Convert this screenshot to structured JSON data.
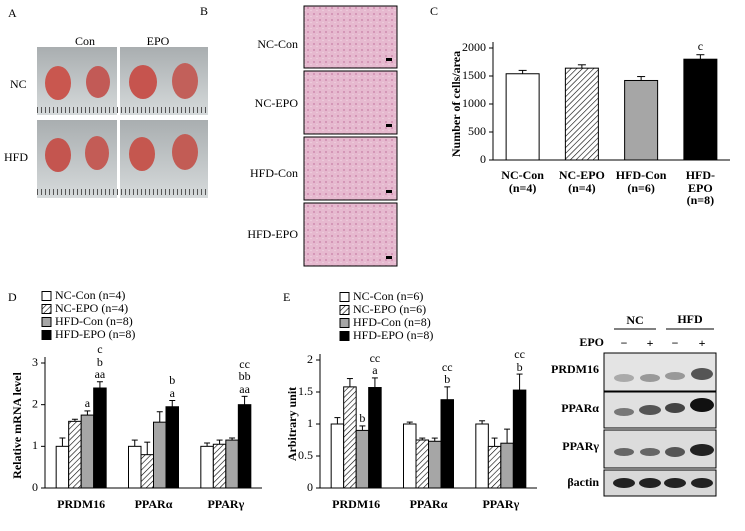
{
  "panel_labels": [
    "A",
    "B",
    "C",
    "D",
    "E"
  ],
  "photos": {
    "columns": [
      "Con",
      "EPO"
    ],
    "rows": [
      "NC",
      "HFD"
    ]
  },
  "histology": {
    "labels": [
      "NC-Con",
      "NC-EPO",
      "HFD-Con",
      "HFD-EPO"
    ]
  },
  "blot": {
    "groups": [
      "NC",
      "HFD"
    ],
    "treatment": "EPO",
    "signs": [
      "−",
      "+",
      "−",
      "+"
    ],
    "rows": [
      "PRDM16",
      "PPARα",
      "PPARγ",
      "βactin"
    ]
  },
  "chart_data": [
    {
      "type": "bar",
      "ylabel": "Number of cells/area",
      "categories": [
        "NC-Con\n(n=4)",
        "NC-EPO\n(n=4)",
        "HFD-Con\n(n=6)",
        "HFD-EPO\n(n=8)"
      ],
      "values": [
        1540,
        1640,
        1420,
        1800
      ],
      "errors": [
        60,
        60,
        70,
        80
      ],
      "colors": [
        "#ffffff",
        "#ffffff",
        "#a6a6a6",
        "#000000"
      ],
      "hatched": [
        false,
        true,
        false,
        false
      ],
      "labels": [
        null,
        null,
        null,
        "c"
      ],
      "ylim": [
        0,
        2000
      ],
      "yticks": [
        0,
        500,
        1000,
        1500,
        2000
      ]
    },
    {
      "type": "grouped_bar",
      "ylabel": "Relative mRNA level",
      "categories": [
        "PRDM16",
        "PPARα",
        "PPARγ"
      ],
      "series": [
        {
          "name": "NC-Con (n=4)",
          "color": "#ffffff",
          "hatched": false,
          "values": [
            1.0,
            1.0,
            1.0
          ],
          "errors": [
            0.2,
            0.15,
            0.08
          ],
          "labels": [
            null,
            null,
            null
          ]
        },
        {
          "name": "NC-EPO (n=4)",
          "color": "#ffffff",
          "hatched": true,
          "values": [
            1.6,
            0.8,
            1.05
          ],
          "errors": [
            0.05,
            0.3,
            0.1
          ],
          "labels": [
            null,
            null,
            null
          ]
        },
        {
          "name": "HFD-Con (n=8)",
          "color": "#a6a6a6",
          "hatched": false,
          "values": [
            1.75,
            1.58,
            1.15
          ],
          "errors": [
            0.1,
            0.25,
            0.05
          ],
          "labels": [
            "a",
            null,
            null
          ]
        },
        {
          "name": "HFD-EPO (n=8)",
          "color": "#000000",
          "hatched": false,
          "values": [
            2.4,
            1.95,
            2.0
          ],
          "errors": [
            0.15,
            0.15,
            0.2
          ],
          "labels": [
            "c\nb\naa",
            "b\na",
            "cc\nbb\naa"
          ]
        }
      ],
      "ylim": [
        0,
        3
      ],
      "yticks": [
        0,
        1,
        2,
        3
      ]
    },
    {
      "type": "grouped_bar",
      "ylabel": "Arbitrary unit",
      "categories": [
        "PRDM16",
        "PPARα",
        "PPARγ"
      ],
      "series": [
        {
          "name": "NC-Con (n=6)",
          "color": "#ffffff",
          "hatched": false,
          "values": [
            1.0,
            1.0,
            1.0
          ],
          "errors": [
            0.1,
            0.03,
            0.05
          ],
          "labels": [
            null,
            null,
            null
          ]
        },
        {
          "name": "NC-EPO (n=6)",
          "color": "#ffffff",
          "hatched": true,
          "values": [
            1.58,
            0.75,
            0.65
          ],
          "errors": [
            0.13,
            0.03,
            0.13
          ],
          "labels": [
            null,
            null,
            null
          ]
        },
        {
          "name": "HFD-Con (n=8)",
          "color": "#a6a6a6",
          "hatched": false,
          "values": [
            0.9,
            0.73,
            0.7
          ],
          "errors": [
            0.07,
            0.05,
            0.22
          ],
          "labels": [
            "b",
            null,
            null
          ]
        },
        {
          "name": "HFD-EPO (n=8)",
          "color": "#000000",
          "hatched": false,
          "values": [
            1.57,
            1.38,
            1.53
          ],
          "errors": [
            0.15,
            0.2,
            0.25
          ],
          "labels": [
            "cc\na",
            "cc\nb",
            "cc\nb"
          ]
        }
      ],
      "ylim": [
        0,
        2
      ],
      "yticks": [
        0,
        0.5,
        1,
        1.5,
        2
      ]
    }
  ]
}
